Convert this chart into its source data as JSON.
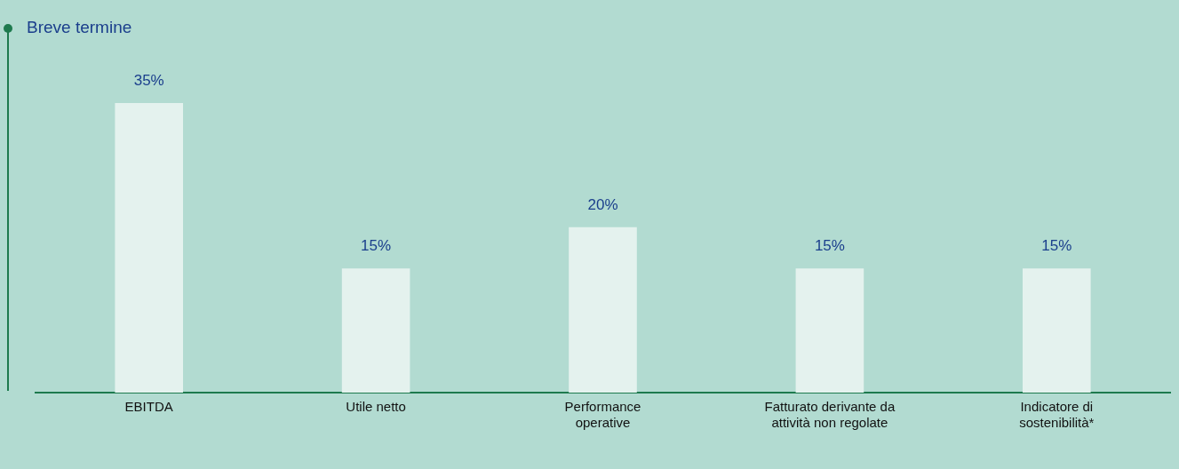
{
  "chart_data": {
    "type": "bar",
    "title": "Breve termine",
    "categories": [
      "EBITDA",
      "Utile netto",
      "Performance operative",
      "Fatturato derivante da attività non regolate",
      "Indicatore di sostenibilità*"
    ],
    "values": [
      35,
      15,
      20,
      15,
      15
    ],
    "value_labels": [
      "35%",
      "15%",
      "20%",
      "15%",
      "15%"
    ],
    "color": "#e4f2ee"
  }
}
